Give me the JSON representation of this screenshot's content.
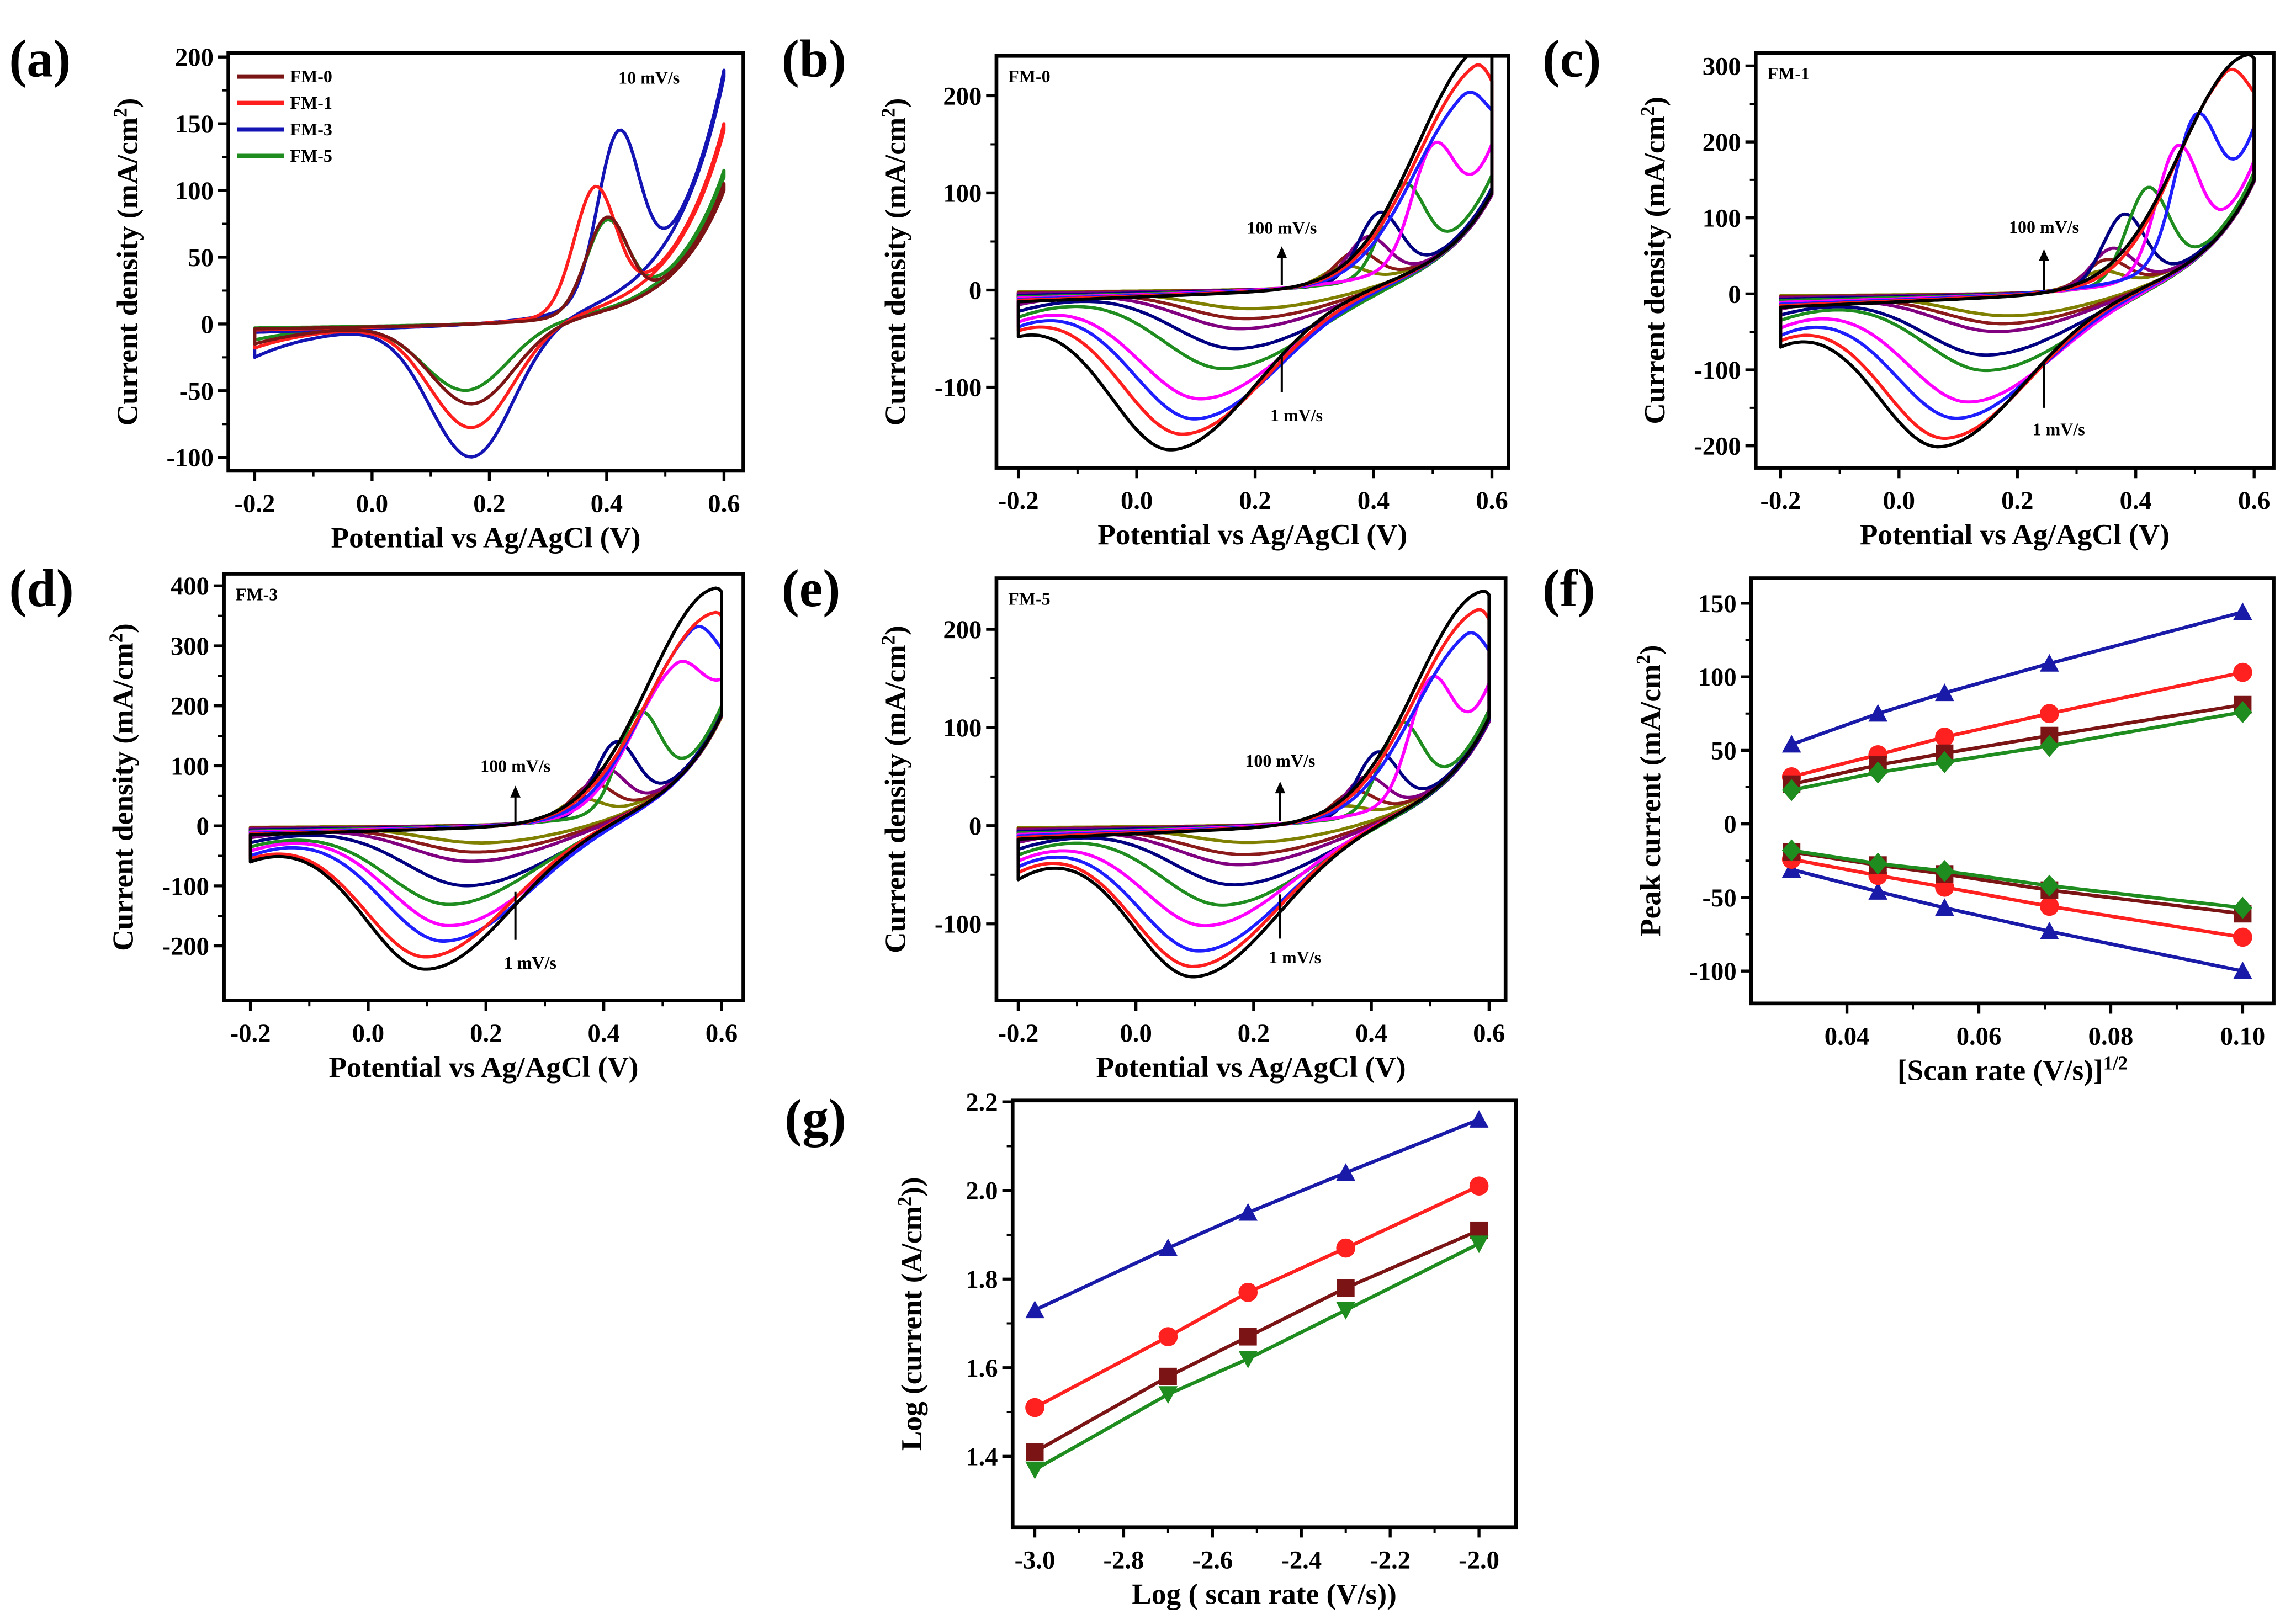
{
  "figure": {
    "panel_labels": [
      "(a)",
      "(b)",
      "(c)",
      "(d)",
      "(e)",
      "(f)",
      "(g)"
    ]
  },
  "chart_data": [
    {
      "id": "a",
      "type": "cv",
      "xlabel": {
        "text": "Potential vs Ag/AgCl (V)"
      },
      "ylabel": {
        "text": "Current density (mA/cm",
        "sup": "2",
        "tail": ")"
      },
      "xlim": [
        -0.245,
        0.633
      ],
      "ylim": [
        -110,
        203
      ],
      "xticks": [
        "-0.2",
        "0.0",
        "0.2",
        "0.4",
        "0.6"
      ],
      "yticks": [
        "-100",
        "-50",
        "0",
        "50",
        "100",
        "150",
        "200"
      ],
      "annotations": [
        "10 mV/s"
      ],
      "legend": {
        "placement": "top-left",
        "entries": [
          "FM-0",
          "FM-1",
          "FM-3",
          "FM-5"
        ]
      },
      "series": [
        {
          "name": "FM-0",
          "color": "#7b1414",
          "anodic_peak": [
            0.4,
            80
          ],
          "upper_vertex": 105,
          "lower_vertex": 100,
          "cathodic_peak": [
            0.17,
            -60
          ],
          "start": -15
        },
        {
          "name": "FM-1",
          "color": "#ff1e1e",
          "anodic_peak": [
            0.38,
            103
          ],
          "upper_vertex": 150,
          "lower_vertex": 145,
          "cathodic_peak": [
            0.17,
            -78
          ],
          "start": -18
        },
        {
          "name": "FM-3",
          "color": "#1414b4",
          "anodic_peak": [
            0.42,
            145
          ],
          "upper_vertex": 190,
          "lower_vertex": 185,
          "cathodic_peak": [
            0.17,
            -100
          ],
          "start": -25
        },
        {
          "name": "FM-5",
          "color": "#1e8c1e",
          "anodic_peak": [
            0.4,
            78
          ],
          "upper_vertex": 115,
          "lower_vertex": 110,
          "cathodic_peak": [
            0.16,
            -50
          ],
          "start": -12
        }
      ]
    },
    {
      "id": "b",
      "type": "cv",
      "xlabel": {
        "text": "Potential vs Ag/AgCl (V)"
      },
      "ylabel": {
        "text": "Current density (mA/cm",
        "sup": "2",
        "tail": ")"
      },
      "xlim": [
        -0.237,
        0.628
      ],
      "ylim": [
        -183,
        241
      ],
      "xticks": [
        "-0.2",
        "0.0",
        "0.2",
        "0.4",
        "0.6"
      ],
      "yticks": [
        "-100",
        "0",
        "100",
        "200"
      ],
      "annotations": [
        "FM-0",
        "100 mV/s",
        "1 mV/s"
      ],
      "series": [
        {
          "color": "#000000",
          "anodic_peak": [
            0.58,
            240
          ],
          "upper_vertex": 240,
          "lower_vertex": 100,
          "cathodic_peak": [
            0.06,
            -160
          ],
          "start": -48
        },
        {
          "color": "#ff1e1e",
          "anodic_peak": [
            0.57,
            215
          ],
          "upper_vertex": 215,
          "lower_vertex": 100,
          "cathodic_peak": [
            0.08,
            -145
          ],
          "start": -42
        },
        {
          "color": "#1e1eff",
          "anodic_peak": [
            0.55,
            185
          ],
          "upper_vertex": 185,
          "lower_vertex": 100,
          "cathodic_peak": [
            0.1,
            -130
          ],
          "start": -38
        },
        {
          "color": "#ff00ff",
          "anodic_peak": [
            0.5,
            150
          ],
          "upper_vertex": 150,
          "lower_vertex": 100,
          "cathodic_peak": [
            0.11,
            -110
          ],
          "start": -33
        },
        {
          "color": "#1e8c1e",
          "anodic_peak": [
            0.45,
            110
          ],
          "upper_vertex": 118,
          "lower_vertex": 100,
          "cathodic_peak": [
            0.15,
            -80
          ],
          "start": -28
        },
        {
          "color": "#000080",
          "anodic_peak": [
            0.41,
            80
          ],
          "upper_vertex": 105,
          "lower_vertex": 100,
          "cathodic_peak": [
            0.17,
            -60
          ],
          "start": -22
        },
        {
          "color": "#800080",
          "anodic_peak": [
            0.39,
            55
          ],
          "upper_vertex": 100,
          "lower_vertex": 98,
          "cathodic_peak": [
            0.18,
            -40
          ],
          "start": -15
        },
        {
          "color": "#8b1a1a",
          "anodic_peak": [
            0.37,
            40
          ],
          "upper_vertex": 100,
          "lower_vertex": 98,
          "cathodic_peak": [
            0.19,
            -30
          ],
          "start": -12
        },
        {
          "color": "#808000",
          "anodic_peak": [
            0.35,
            25
          ],
          "upper_vertex": 100,
          "lower_vertex": 98,
          "cathodic_peak": [
            0.2,
            -20
          ],
          "start": -8
        }
      ]
    },
    {
      "id": "c",
      "type": "cv",
      "xlabel": {
        "text": "Potential vs Ag/AgCl (V)"
      },
      "ylabel": {
        "text": "Current density (mA/cm",
        "sup": "2",
        "tail": ")"
      },
      "xlim": [
        -0.242,
        0.633
      ],
      "ylim": [
        -229,
        317
      ],
      "xticks": [
        "-0.2",
        "0.0",
        "0.2",
        "0.4",
        "0.6"
      ],
      "yticks": [
        "-200",
        "-100",
        "0",
        "100",
        "200",
        "300"
      ],
      "annotations": [
        "FM-1",
        "100 mV/s",
        "1 mV/s"
      ],
      "series": [
        {
          "color": "#000000",
          "anodic_peak": [
            0.59,
            310
          ],
          "upper_vertex": 310,
          "lower_vertex": 150,
          "cathodic_peak": [
            0.07,
            -195
          ],
          "start": -70
        },
        {
          "color": "#ff1e1e",
          "anodic_peak": [
            0.55,
            270
          ],
          "upper_vertex": 265,
          "lower_vertex": 150,
          "cathodic_peak": [
            0.08,
            -185
          ],
          "start": -62
        },
        {
          "color": "#1e1eff",
          "anodic_peak": [
            0.5,
            235
          ],
          "upper_vertex": 220,
          "lower_vertex": 150,
          "cathodic_peak": [
            0.1,
            -160
          ],
          "start": -55
        },
        {
          "color": "#ff00ff",
          "anodic_peak": [
            0.47,
            195
          ],
          "upper_vertex": 175,
          "lower_vertex": 150,
          "cathodic_peak": [
            0.12,
            -140
          ],
          "start": -45
        },
        {
          "color": "#1e8c1e",
          "anodic_peak": [
            0.42,
            140
          ],
          "upper_vertex": 160,
          "lower_vertex": 150,
          "cathodic_peak": [
            0.15,
            -100
          ],
          "start": -35
        },
        {
          "color": "#000080",
          "anodic_peak": [
            0.38,
            105
          ],
          "upper_vertex": 155,
          "lower_vertex": 150,
          "cathodic_peak": [
            0.15,
            -80
          ],
          "start": -28
        },
        {
          "color": "#800080",
          "anodic_peak": [
            0.36,
            60
          ],
          "upper_vertex": 150,
          "lower_vertex": 148,
          "cathodic_peak": [
            0.17,
            -50
          ],
          "start": -20
        },
        {
          "color": "#8b1a1a",
          "anodic_peak": [
            0.35,
            45
          ],
          "upper_vertex": 150,
          "lower_vertex": 148,
          "cathodic_peak": [
            0.18,
            -40
          ],
          "start": -15
        },
        {
          "color": "#808000",
          "anodic_peak": [
            0.34,
            30
          ],
          "upper_vertex": 150,
          "lower_vertex": 148,
          "cathodic_peak": [
            0.19,
            -30
          ],
          "start": -10
        }
      ]
    },
    {
      "id": "d",
      "type": "cv",
      "xlabel": {
        "text": "Potential vs Ag/AgCl (V)"
      },
      "ylabel": {
        "text": "Current density (mA/cm",
        "sup": "2",
        "tail": ")"
      },
      "xlim": [
        -0.245,
        0.637
      ],
      "ylim": [
        -291,
        420
      ],
      "xticks": [
        "-0.2",
        "0.0",
        "0.2",
        "0.4",
        "0.6"
      ],
      "yticks": [
        "-200",
        "-100",
        "0",
        "100",
        "200",
        "300",
        "400"
      ],
      "annotations": [
        "FM-3",
        "100 mV/s",
        "1 mV/s"
      ],
      "series": [
        {
          "color": "#000000",
          "anodic_peak": [
            0.59,
            390
          ],
          "upper_vertex": 390,
          "lower_vertex": 185,
          "cathodic_peak": [
            0.1,
            -235
          ],
          "start": -60
        },
        {
          "color": "#ff1e1e",
          "anodic_peak": [
            0.59,
            350
          ],
          "upper_vertex": 350,
          "lower_vertex": 185,
          "cathodic_peak": [
            0.1,
            -215
          ],
          "start": -55
        },
        {
          "color": "#1e1eff",
          "anodic_peak": [
            0.55,
            305
          ],
          "upper_vertex": 295,
          "lower_vertex": 185,
          "cathodic_peak": [
            0.13,
            -190
          ],
          "start": -50
        },
        {
          "color": "#ff00ff",
          "anodic_peak": [
            0.52,
            260
          ],
          "upper_vertex": 245,
          "lower_vertex": 185,
          "cathodic_peak": [
            0.14,
            -165
          ],
          "start": -42
        },
        {
          "color": "#1e8c1e",
          "anodic_peak": [
            0.46,
            190
          ],
          "upper_vertex": 200,
          "lower_vertex": 185,
          "cathodic_peak": [
            0.14,
            -130
          ],
          "start": -35
        },
        {
          "color": "#000080",
          "anodic_peak": [
            0.42,
            140
          ],
          "upper_vertex": 190,
          "lower_vertex": 185,
          "cathodic_peak": [
            0.17,
            -100
          ],
          "start": -28
        },
        {
          "color": "#800080",
          "anodic_peak": [
            0.4,
            95
          ],
          "upper_vertex": 188,
          "lower_vertex": 184,
          "cathodic_peak": [
            0.18,
            -60
          ],
          "start": -20
        },
        {
          "color": "#8b1a1a",
          "anodic_peak": [
            0.38,
            70
          ],
          "upper_vertex": 186,
          "lower_vertex": 183,
          "cathodic_peak": [
            0.19,
            -45
          ],
          "start": -15
        },
        {
          "color": "#808000",
          "anodic_peak": [
            0.36,
            45
          ],
          "upper_vertex": 185,
          "lower_vertex": 182,
          "cathodic_peak": [
            0.2,
            -30
          ],
          "start": -10
        }
      ]
    },
    {
      "id": "e",
      "type": "cv",
      "xlabel": {
        "text": "Potential vs Ag/AgCl (V)"
      },
      "ylabel": {
        "text": "Current density (mA/cm",
        "sup": "2",
        "tail": ")"
      },
      "xlim": [
        -0.237,
        0.628
      ],
      "ylim": [
        -178,
        252
      ],
      "xticks": [
        "-0.2",
        "0.0",
        "0.2",
        "0.4",
        "0.6"
      ],
      "yticks": [
        "-100",
        "0",
        "100",
        "200"
      ],
      "annotations": [
        "FM-5",
        "100 mV/s",
        "1 mV/s"
      ],
      "series": [
        {
          "color": "#000000",
          "anodic_peak": [
            0.59,
            235
          ],
          "upper_vertex": 235,
          "lower_vertex": 110,
          "cathodic_peak": [
            0.1,
            -150
          ],
          "start": -55
        },
        {
          "color": "#ff1e1e",
          "anodic_peak": [
            0.58,
            210
          ],
          "upper_vertex": 210,
          "lower_vertex": 110,
          "cathodic_peak": [
            0.1,
            -140
          ],
          "start": -48
        },
        {
          "color": "#1e1eff",
          "anodic_peak": [
            0.56,
            180
          ],
          "upper_vertex": 178,
          "lower_vertex": 110,
          "cathodic_peak": [
            0.11,
            -125
          ],
          "start": -42
        },
        {
          "color": "#ff00ff",
          "anodic_peak": [
            0.5,
            150
          ],
          "upper_vertex": 145,
          "lower_vertex": 110,
          "cathodic_peak": [
            0.12,
            -100
          ],
          "start": -36
        },
        {
          "color": "#1e8c1e",
          "anodic_peak": [
            0.45,
            105
          ],
          "upper_vertex": 118,
          "lower_vertex": 110,
          "cathodic_peak": [
            0.15,
            -80
          ],
          "start": -30
        },
        {
          "color": "#000080",
          "anodic_peak": [
            0.41,
            75
          ],
          "upper_vertex": 112,
          "lower_vertex": 108,
          "cathodic_peak": [
            0.17,
            -60
          ],
          "start": -24
        },
        {
          "color": "#800080",
          "anodic_peak": [
            0.39,
            50
          ],
          "upper_vertex": 110,
          "lower_vertex": 106,
          "cathodic_peak": [
            0.18,
            -40
          ],
          "start": -17
        },
        {
          "color": "#8b1a1a",
          "anodic_peak": [
            0.37,
            35
          ],
          "upper_vertex": 110,
          "lower_vertex": 106,
          "cathodic_peak": [
            0.19,
            -30
          ],
          "start": -13
        },
        {
          "color": "#808000",
          "anodic_peak": [
            0.35,
            20
          ],
          "upper_vertex": 110,
          "lower_vertex": 106,
          "cathodic_peak": [
            0.2,
            -18
          ],
          "start": -8
        }
      ]
    },
    {
      "id": "f",
      "type": "scatter-line",
      "xlabel": {
        "text": "[Scan rate (V/s)]",
        "sup": "1/2",
        "tail": ""
      },
      "ylabel": {
        "text": "Peak current (mA/cm",
        "sup": "2",
        "tail": ")"
      },
      "xlim": [
        0.0255,
        0.1047
      ],
      "ylim": [
        -122,
        167
      ],
      "xticks": [
        "0.04",
        "0.06",
        "0.08",
        "0.10"
      ],
      "yticks": [
        "-100",
        "-50",
        "0",
        "50",
        "100",
        "150"
      ],
      "x": [
        0.0316,
        0.0447,
        0.0548,
        0.0707,
        0.1
      ],
      "series": [
        {
          "color": "#1a1aa8",
          "marker": "triangle-up",
          "values": [
            54,
            75,
            89,
            109,
            144
          ]
        },
        {
          "color": "#ff2020",
          "marker": "circle",
          "values": [
            32,
            47,
            59,
            75,
            103
          ]
        },
        {
          "color": "#7b1414",
          "marker": "square",
          "values": [
            27,
            40,
            48,
            60,
            81
          ]
        },
        {
          "color": "#1e8c1e",
          "marker": "diamond",
          "values": [
            23,
            35,
            42,
            53,
            76
          ]
        },
        {
          "color": "#1a1aa8",
          "marker": "triangle-up",
          "values": [
            -31,
            -46,
            -57,
            -73,
            -100
          ]
        },
        {
          "color": "#ff2020",
          "marker": "circle",
          "values": [
            -24,
            -35,
            -43,
            -56,
            -77
          ]
        },
        {
          "color": "#7b1414",
          "marker": "square",
          "values": [
            -19,
            -28,
            -34,
            -45,
            -61
          ]
        },
        {
          "color": "#1e8c1e",
          "marker": "diamond",
          "values": [
            -18,
            -27,
            -32,
            -42,
            -57
          ]
        }
      ]
    },
    {
      "id": "g",
      "type": "scatter-line",
      "xlabel": {
        "text": "Log ( scan rate (V/s))"
      },
      "ylabel": {
        "text": "Log (current (A/cm",
        "sup": "2",
        "tail": "))"
      },
      "xlim": [
        -3.05,
        -1.917
      ],
      "ylim": [
        1.24,
        2.203
      ],
      "xticks": [
        "-3.0",
        "-2.8",
        "-2.6",
        "-2.4",
        "-2.2",
        "-2.0"
      ],
      "yticks": [
        "1.4",
        "1.6",
        "1.8",
        "2.0",
        "2.2"
      ],
      "x": [
        -3.0,
        -2.7,
        -2.52,
        -2.3,
        -2.0
      ],
      "series": [
        {
          "color": "#1a1aa8",
          "marker": "triangle-up",
          "values": [
            1.73,
            1.87,
            1.95,
            2.04,
            2.16
          ]
        },
        {
          "color": "#ff2020",
          "marker": "circle",
          "values": [
            1.51,
            1.67,
            1.77,
            1.87,
            2.01
          ]
        },
        {
          "color": "#7b1414",
          "marker": "square",
          "values": [
            1.41,
            1.58,
            1.67,
            1.78,
            1.91
          ]
        },
        {
          "color": "#1e8c1e",
          "marker": "triangle-down",
          "values": [
            1.37,
            1.54,
            1.62,
            1.73,
            1.88
          ]
        }
      ]
    }
  ]
}
